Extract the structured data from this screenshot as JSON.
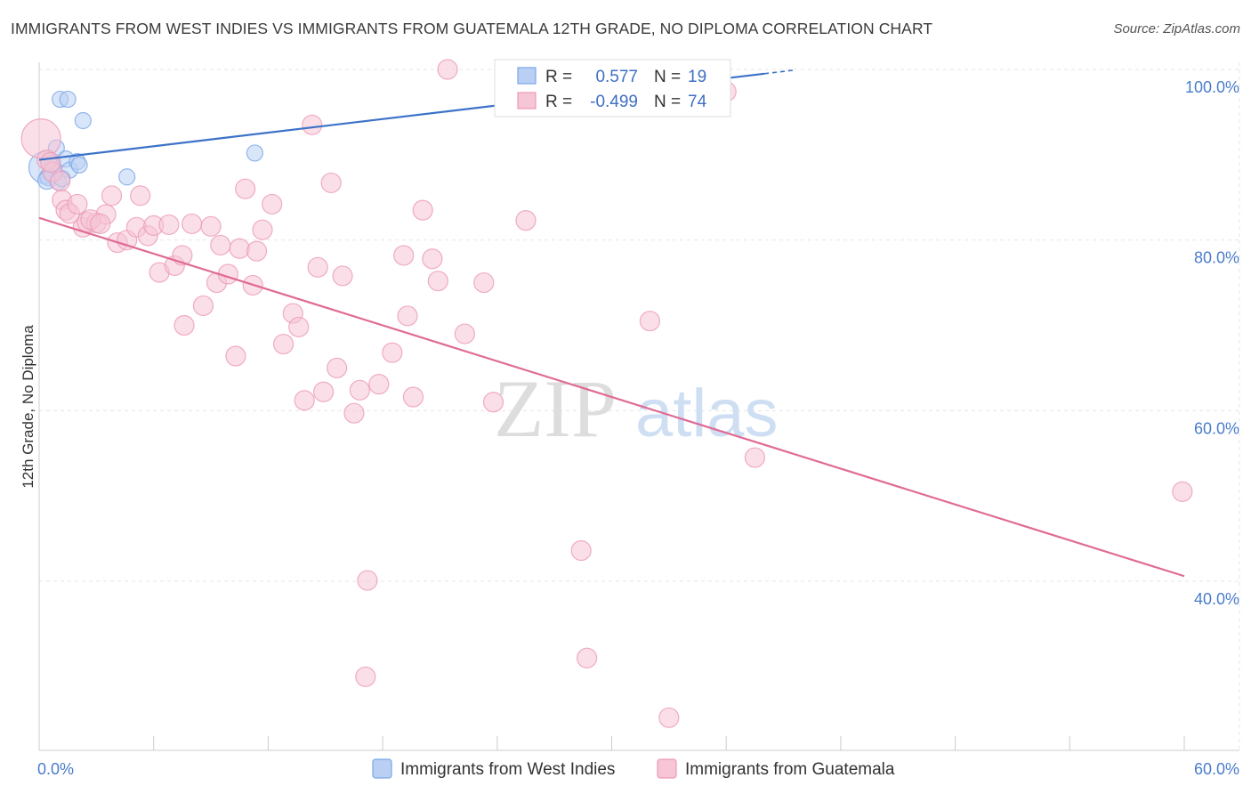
{
  "title": "IMMIGRANTS FROM WEST INDIES VS IMMIGRANTS FROM GUATEMALA 12TH GRADE, NO DIPLOMA CORRELATION CHART",
  "source": "Source: ZipAtlas.com",
  "watermark": {
    "zip": "ZIP",
    "atlas": "atlas"
  },
  "chart_data": {
    "type": "scatter",
    "xlabel": "",
    "ylabel": "12th Grade, No Diploma",
    "xlim": [
      0,
      60
    ],
    "ylim": [
      20,
      104
    ],
    "x_tick_labels": [
      {
        "value": 0,
        "label": "0.0%"
      },
      {
        "value": 60,
        "label": "60.0%"
      }
    ],
    "y_tick_labels": [
      {
        "value": 40,
        "label": "40.0%"
      },
      {
        "value": 60,
        "label": "60.0%"
      },
      {
        "value": 80,
        "label": "80.0%"
      },
      {
        "value": 100,
        "label": "100.0%"
      }
    ],
    "grid": true,
    "legend_position": "bottom-center",
    "stats_box": [
      {
        "r_label": "R =",
        "r_value": "0.577",
        "n_label": "N =",
        "n_value": "19"
      },
      {
        "r_label": "R =",
        "r_value": "-0.499",
        "n_label": "N =",
        "n_value": "74"
      }
    ],
    "series": [
      {
        "name": "Immigrants from West Indies",
        "color": "#7aa6e6",
        "fill": "#b9d0f4",
        "line_color": "#3b72c8",
        "trend": {
          "x": [
            0,
            38
          ],
          "y": [
            89.4,
            99.5
          ]
        },
        "trend_dashed": {
          "x": [
            38,
            39.5
          ],
          "y": [
            99.5,
            99.9
          ]
        },
        "points": [
          [
            0.3,
            88.5,
            18
          ],
          [
            0.5,
            87.4,
            10
          ],
          [
            0.7,
            87.9,
            10
          ],
          [
            0.4,
            87.0,
            10
          ],
          [
            1.0,
            86.8,
            9
          ],
          [
            0.7,
            89.0,
            9
          ],
          [
            0.9,
            90.8,
            9
          ],
          [
            1.1,
            96.5,
            9
          ],
          [
            1.5,
            96.5,
            9
          ],
          [
            1.4,
            89.5,
            9
          ],
          [
            1.6,
            88.2,
            9
          ],
          [
            2.0,
            89.2,
            9
          ],
          [
            2.1,
            88.8,
            9
          ],
          [
            2.3,
            94.0,
            9
          ],
          [
            1.2,
            87.2,
            9
          ],
          [
            4.6,
            87.4,
            9
          ],
          [
            11.3,
            90.2,
            9
          ],
          [
            24.5,
            95.9,
            9
          ],
          [
            29.0,
            98.6,
            9
          ]
        ]
      },
      {
        "name": "Immigrants from Guatemala",
        "color": "#ec9ab6",
        "fill": "#f6c5d6",
        "line_color": "#e06b96",
        "trend": {
          "x": [
            0,
            60
          ],
          "y": [
            82.6,
            40.6
          ]
        },
        "points": [
          [
            0.1,
            91.9,
            22
          ],
          [
            0.4,
            89.4,
            11
          ],
          [
            0.7,
            88.0,
            11
          ],
          [
            1.2,
            84.7,
            11
          ],
          [
            1.4,
            83.5,
            11
          ],
          [
            1.6,
            83.1,
            11
          ],
          [
            2.0,
            84.2,
            11
          ],
          [
            2.3,
            81.5,
            11
          ],
          [
            2.5,
            82.1,
            11
          ],
          [
            3.0,
            82.0,
            11
          ],
          [
            3.5,
            83.0,
            11
          ],
          [
            3.8,
            85.2,
            11
          ],
          [
            4.1,
            79.7,
            11
          ],
          [
            4.6,
            80.0,
            11
          ],
          [
            5.1,
            81.5,
            11
          ],
          [
            5.3,
            85.2,
            11
          ],
          [
            5.7,
            80.5,
            11
          ],
          [
            6.0,
            81.7,
            11
          ],
          [
            6.3,
            76.2,
            11
          ],
          [
            6.8,
            81.8,
            11
          ],
          [
            7.1,
            77.0,
            11
          ],
          [
            7.5,
            78.2,
            11
          ],
          [
            7.6,
            70.0,
            11
          ],
          [
            8.0,
            81.9,
            11
          ],
          [
            8.6,
            72.3,
            11
          ],
          [
            9.0,
            81.6,
            11
          ],
          [
            9.3,
            75.0,
            11
          ],
          [
            9.5,
            79.4,
            11
          ],
          [
            9.9,
            76.0,
            11
          ],
          [
            10.3,
            66.4,
            11
          ],
          [
            10.5,
            79.0,
            11
          ],
          [
            10.8,
            86.0,
            11
          ],
          [
            11.2,
            74.7,
            11
          ],
          [
            11.4,
            78.7,
            11
          ],
          [
            11.7,
            81.2,
            11
          ],
          [
            12.2,
            84.2,
            11
          ],
          [
            12.8,
            67.8,
            11
          ],
          [
            13.3,
            71.4,
            11
          ],
          [
            13.6,
            69.8,
            11
          ],
          [
            13.9,
            61.2,
            11
          ],
          [
            14.3,
            93.5,
            11
          ],
          [
            14.6,
            76.8,
            11
          ],
          [
            14.9,
            62.2,
            11
          ],
          [
            15.3,
            86.7,
            11
          ],
          [
            15.6,
            65.0,
            11
          ],
          [
            15.9,
            75.8,
            11
          ],
          [
            16.5,
            59.7,
            11
          ],
          [
            16.8,
            62.4,
            11
          ],
          [
            17.1,
            28.8,
            11
          ],
          [
            17.2,
            40.1,
            11
          ],
          [
            17.8,
            63.1,
            11
          ],
          [
            18.5,
            66.8,
            11
          ],
          [
            19.1,
            78.2,
            11
          ],
          [
            19.3,
            71.1,
            11
          ],
          [
            19.6,
            61.6,
            11
          ],
          [
            20.1,
            83.5,
            11
          ],
          [
            20.6,
            77.8,
            11
          ],
          [
            20.9,
            75.2,
            11
          ],
          [
            21.4,
            100.0,
            11
          ],
          [
            22.3,
            69.0,
            11
          ],
          [
            23.3,
            75.0,
            11
          ],
          [
            23.8,
            61.0,
            11
          ],
          [
            25.5,
            82.3,
            11
          ],
          [
            28.4,
            43.6,
            11
          ],
          [
            28.7,
            31.0,
            11
          ],
          [
            32.0,
            70.5,
            11
          ],
          [
            33.0,
            24.0,
            11
          ],
          [
            36.0,
            97.4,
            11
          ],
          [
            37.5,
            54.5,
            11
          ],
          [
            59.9,
            50.5,
            11
          ],
          [
            0.6,
            89.1,
            11
          ],
          [
            1.1,
            86.9,
            11
          ],
          [
            2.7,
            82.4,
            11
          ],
          [
            3.2,
            81.9,
            11
          ]
        ]
      }
    ]
  }
}
